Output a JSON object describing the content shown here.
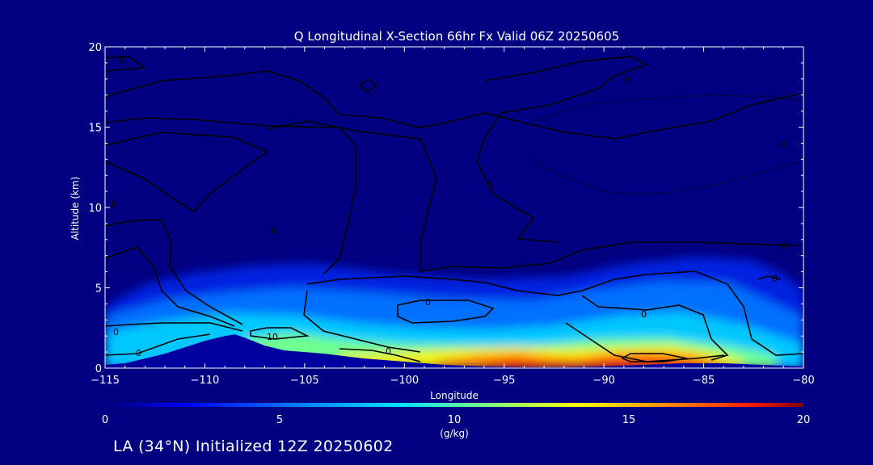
{
  "chart_data": {
    "type": "heatmap",
    "title": "Q Longitudinal X-Section 66hr  Fx Valid 06Z 20250605",
    "xlabel": "Longitude",
    "ylabel": "Altitude (km)",
    "xlim": [
      -115,
      -80
    ],
    "ylim": [
      0,
      20
    ],
    "x_ticks": [
      -115,
      -110,
      -105,
      -100,
      -95,
      -90,
      -85,
      -80
    ],
    "x_tick_labels": [
      "−115",
      "−110",
      "−105",
      "−100",
      "−95",
      "−90",
      "−85",
      "−80"
    ],
    "y_ticks": [
      0,
      5,
      10,
      15,
      20
    ],
    "y_tick_labels": [
      "0",
      "5",
      "10",
      "15",
      "20"
    ],
    "colorbar": {
      "label": "(g/kg)",
      "range": [
        0,
        20
      ],
      "ticks": [
        0,
        5,
        10,
        15,
        20
      ],
      "tick_labels": [
        "0",
        "5",
        "10",
        "15",
        "20"
      ]
    },
    "contour_labels": [
      "0",
      "10",
      "0",
      "0",
      "0",
      "0",
      "0",
      "0",
      "0",
      "0",
      "0",
      "0",
      "0",
      "0"
    ],
    "humidity_profile": {
      "description_units": "g/kg specific humidity near surface",
      "x": [
        -115,
        -112,
        -110,
        -108,
        -106,
        -104,
        -102,
        -100,
        -98,
        -96,
        -94,
        -92,
        -90,
        -88,
        -86,
        -84,
        -82,
        -80
      ],
      "surface_q": [
        6,
        7,
        8,
        8,
        9,
        10,
        11,
        12,
        13,
        15,
        16,
        15,
        14,
        16,
        15,
        12,
        10,
        8
      ],
      "moist_top_km": [
        3.5,
        3.8,
        4.2,
        4.5,
        5.0,
        5.2,
        5.5,
        5.3,
        5.0,
        5.0,
        5.0,
        5.0,
        5.5,
        6.0,
        6.2,
        6.5,
        5.5,
        4.0
      ]
    },
    "terrain": {
      "x": [
        -115,
        -114,
        -113,
        -112,
        -111,
        -110,
        -109,
        -108.5,
        -108,
        -107,
        -106,
        -105,
        -104,
        -102,
        -100,
        -98,
        -96,
        -94,
        -92,
        -90,
        -88,
        -86,
        -84,
        -82,
        -80
      ],
      "height_km": [
        0.2,
        0.3,
        0.6,
        0.9,
        1.3,
        1.7,
        2.0,
        2.1,
        1.9,
        1.4,
        1.1,
        1.0,
        0.9,
        0.6,
        0.4,
        0.2,
        0.1,
        0.05,
        0.05,
        0.1,
        0.2,
        0.3,
        0.3,
        0.2,
        0.1
      ]
    },
    "colors": {
      "background": "#000080",
      "plot_background": "#000080",
      "terrain": "#0000a0"
    }
  },
  "footer": {
    "caption": "LA (34°N) Initialized 12Z 20250602"
  }
}
